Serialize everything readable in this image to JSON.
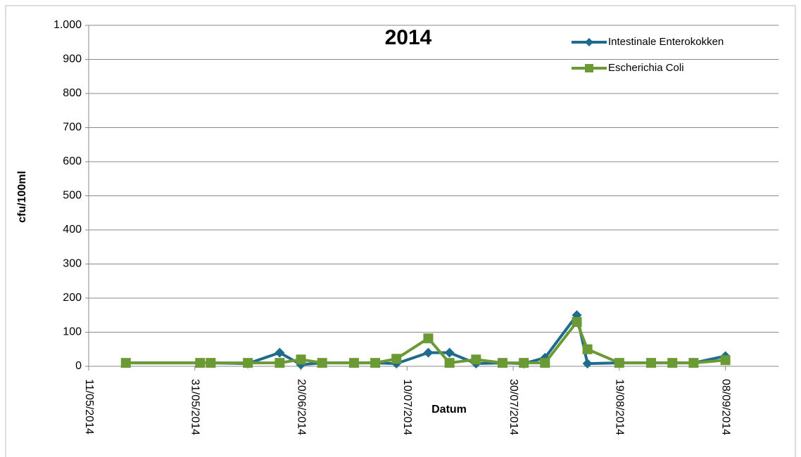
{
  "chart_data": {
    "type": "line",
    "title": "2014",
    "x_label": "Datum",
    "y_label": "cfu/100ml",
    "x": [
      "18/05/2014",
      "01/06/2014",
      "03/06/2014",
      "10/06/2014",
      "16/06/2014",
      "20/06/2014",
      "24/06/2014",
      "30/06/2014",
      "04/07/2014",
      "08/07/2014",
      "14/07/2014",
      "18/07/2014",
      "23/07/2014",
      "28/07/2014",
      "01/08/2014",
      "05/08/2014",
      "11/08/2014",
      "13/08/2014",
      "19/08/2014",
      "25/08/2014",
      "29/08/2014",
      "02/09/2014",
      "08/09/2014"
    ],
    "series": [
      {
        "name": "Intestinale Enterokokken",
        "color": "#1f6b8e",
        "marker": "diamond",
        "values": [
          10,
          10,
          10,
          8,
          40,
          5,
          10,
          10,
          10,
          8,
          40,
          40,
          8,
          10,
          8,
          25,
          150,
          8,
          10,
          10,
          10,
          10,
          30
        ]
      },
      {
        "name": "Escherichia Coli",
        "color": "#6b9a35",
        "marker": "square",
        "values": [
          10,
          10,
          10,
          10,
          10,
          20,
          10,
          10,
          10,
          22,
          82,
          10,
          20,
          10,
          10,
          10,
          130,
          50,
          10,
          10,
          10,
          10,
          18
        ]
      }
    ],
    "xlim": [
      "11/05/2014",
      "18/09/2014"
    ],
    "xticks": [
      "11/05/2014",
      "31/05/2014",
      "20/06/2014",
      "10/07/2014",
      "30/07/2014",
      "19/08/2014",
      "08/09/2014"
    ],
    "ylim": [
      0,
      1000
    ],
    "yticks": [
      0,
      100,
      200,
      300,
      400,
      500,
      600,
      700,
      800,
      900,
      {
        "value": 1000,
        "label": "1.000"
      }
    ],
    "grid": true,
    "legend": "top-right"
  }
}
